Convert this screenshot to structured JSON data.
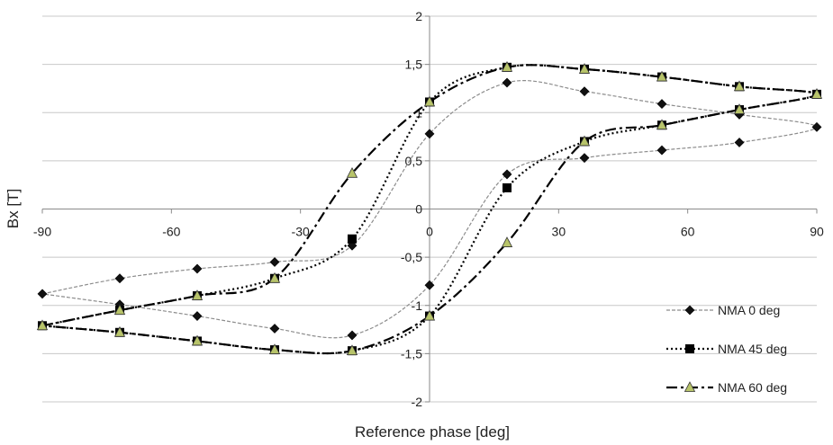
{
  "chart_data": {
    "type": "line",
    "xlabel": "Reference phase [deg]",
    "ylabel": "Bx [T]",
    "xlim": [
      -90,
      90
    ],
    "ylim": [
      -2,
      2
    ],
    "x_ticks": [
      -90,
      -60,
      -30,
      0,
      30,
      60,
      90
    ],
    "x_tick_labels": [
      "-90",
      "-60",
      "-30",
      "0",
      "30",
      "60",
      "90"
    ],
    "y_ticks": [
      2,
      1.5,
      1,
      0.5,
      0,
      -0.5,
      -1,
      -1.5,
      -2
    ],
    "y_tick_labels": [
      "2",
      "1,5",
      "1",
      "0,5",
      "0",
      "-0,5",
      "-1",
      "-1,5",
      "-2"
    ],
    "grid": "horizontal",
    "legend_position": "bottom-right",
    "series": [
      {
        "name": "NMA 0 deg",
        "color": "#8c8c8c",
        "marker_color": "#111111",
        "marker": "diamond",
        "dash": "dashed-thin",
        "points": [
          [
            -90,
            -0.88
          ],
          [
            -72,
            -0.72
          ],
          [
            -54,
            -0.62
          ],
          [
            -36,
            -0.55
          ],
          [
            -18,
            -0.38
          ],
          [
            0,
            0.78
          ],
          [
            18,
            1.31
          ],
          [
            36,
            1.22
          ],
          [
            54,
            1.09
          ],
          [
            72,
            0.98
          ],
          [
            90,
            0.85
          ],
          [
            72,
            0.69
          ],
          [
            54,
            0.61
          ],
          [
            36,
            0.53
          ],
          [
            18,
            0.36
          ],
          [
            0,
            -0.79
          ],
          [
            -18,
            -1.31
          ],
          [
            -36,
            -1.24
          ],
          [
            -54,
            -1.11
          ],
          [
            -72,
            -0.99
          ],
          [
            -90,
            -0.88
          ]
        ]
      },
      {
        "name": "NMA 45 deg",
        "color": "#000000",
        "marker_color": "#000000",
        "marker": "square",
        "dash": "dotted",
        "points": [
          [
            -90,
            -1.21
          ],
          [
            -72,
            -1.05
          ],
          [
            -54,
            -0.9
          ],
          [
            -36,
            -0.72
          ],
          [
            -18,
            -0.31
          ],
          [
            0,
            1.11
          ],
          [
            18,
            1.47
          ],
          [
            36,
            1.45
          ],
          [
            54,
            1.37
          ],
          [
            72,
            1.27
          ],
          [
            90,
            1.19
          ],
          [
            72,
            1.03
          ],
          [
            54,
            0.87
          ],
          [
            36,
            0.7
          ],
          [
            18,
            0.22
          ],
          [
            0,
            -1.11
          ],
          [
            -18,
            -1.47
          ],
          [
            -36,
            -1.46
          ],
          [
            -54,
            -1.37
          ],
          [
            -72,
            -1.28
          ],
          [
            -90,
            -1.21
          ]
        ]
      },
      {
        "name": "NMA 60 deg",
        "color": "#000000",
        "marker_color": "#b8c46a",
        "marker": "triangle",
        "dash": "dash-dot",
        "points": [
          [
            -90,
            -1.21
          ],
          [
            -72,
            -1.05
          ],
          [
            -54,
            -0.9
          ],
          [
            -36,
            -0.72
          ],
          [
            -18,
            0.37
          ],
          [
            0,
            1.11
          ],
          [
            18,
            1.47
          ],
          [
            36,
            1.45
          ],
          [
            54,
            1.37
          ],
          [
            72,
            1.27
          ],
          [
            90,
            1.19
          ],
          [
            72,
            1.03
          ],
          [
            54,
            0.87
          ],
          [
            36,
            0.7
          ],
          [
            18,
            -0.35
          ],
          [
            0,
            -1.11
          ],
          [
            -18,
            -1.47
          ],
          [
            -36,
            -1.46
          ],
          [
            -54,
            -1.37
          ],
          [
            -72,
            -1.28
          ],
          [
            -90,
            -1.21
          ]
        ]
      }
    ]
  }
}
